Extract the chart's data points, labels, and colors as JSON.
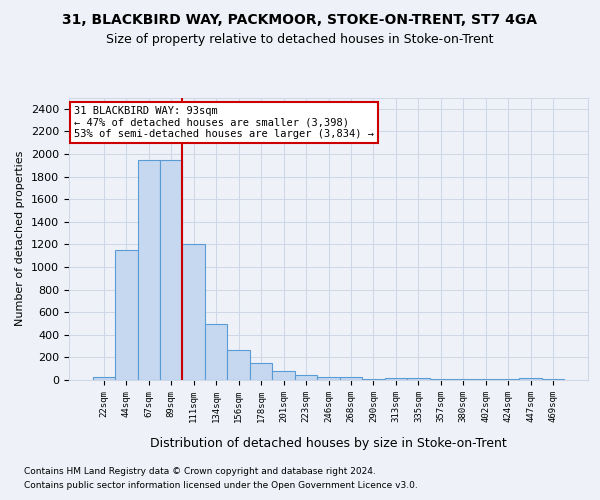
{
  "title": "31, BLACKBIRD WAY, PACKMOOR, STOKE-ON-TRENT, ST7 4GA",
  "subtitle": "Size of property relative to detached houses in Stoke-on-Trent",
  "xlabel": "Distribution of detached houses by size in Stoke-on-Trent",
  "ylabel": "Number of detached properties",
  "bin_labels": [
    "22sqm",
    "44sqm",
    "67sqm",
    "89sqm",
    "111sqm",
    "134sqm",
    "156sqm",
    "178sqm",
    "201sqm",
    "223sqm",
    "246sqm",
    "268sqm",
    "290sqm",
    "313sqm",
    "335sqm",
    "357sqm",
    "380sqm",
    "402sqm",
    "424sqm",
    "447sqm",
    "469sqm"
  ],
  "bar_values": [
    30,
    1150,
    1950,
    1950,
    1200,
    500,
    265,
    150,
    80,
    40,
    30,
    30,
    10,
    15,
    20,
    10,
    5,
    5,
    5,
    20,
    10
  ],
  "bar_color": "#c5d8f0",
  "bar_edge_color": "#5b9bd5",
  "vline_color": "#cc0000",
  "annotation_text": "31 BLACKBIRD WAY: 93sqm\n← 47% of detached houses are smaller (3,398)\n53% of semi-detached houses are larger (3,834) →",
  "annotation_box_color": "white",
  "annotation_box_edge_color": "#cc0000",
  "ylim": [
    0,
    2500
  ],
  "yticks": [
    0,
    200,
    400,
    600,
    800,
    1000,
    1200,
    1400,
    1600,
    1800,
    2000,
    2200,
    2400
  ],
  "footer1": "Contains HM Land Registry data © Crown copyright and database right 2024.",
  "footer2": "Contains public sector information licensed under the Open Government Licence v3.0.",
  "bg_color": "#eef2f8",
  "grid_color": "#d0d8e8"
}
